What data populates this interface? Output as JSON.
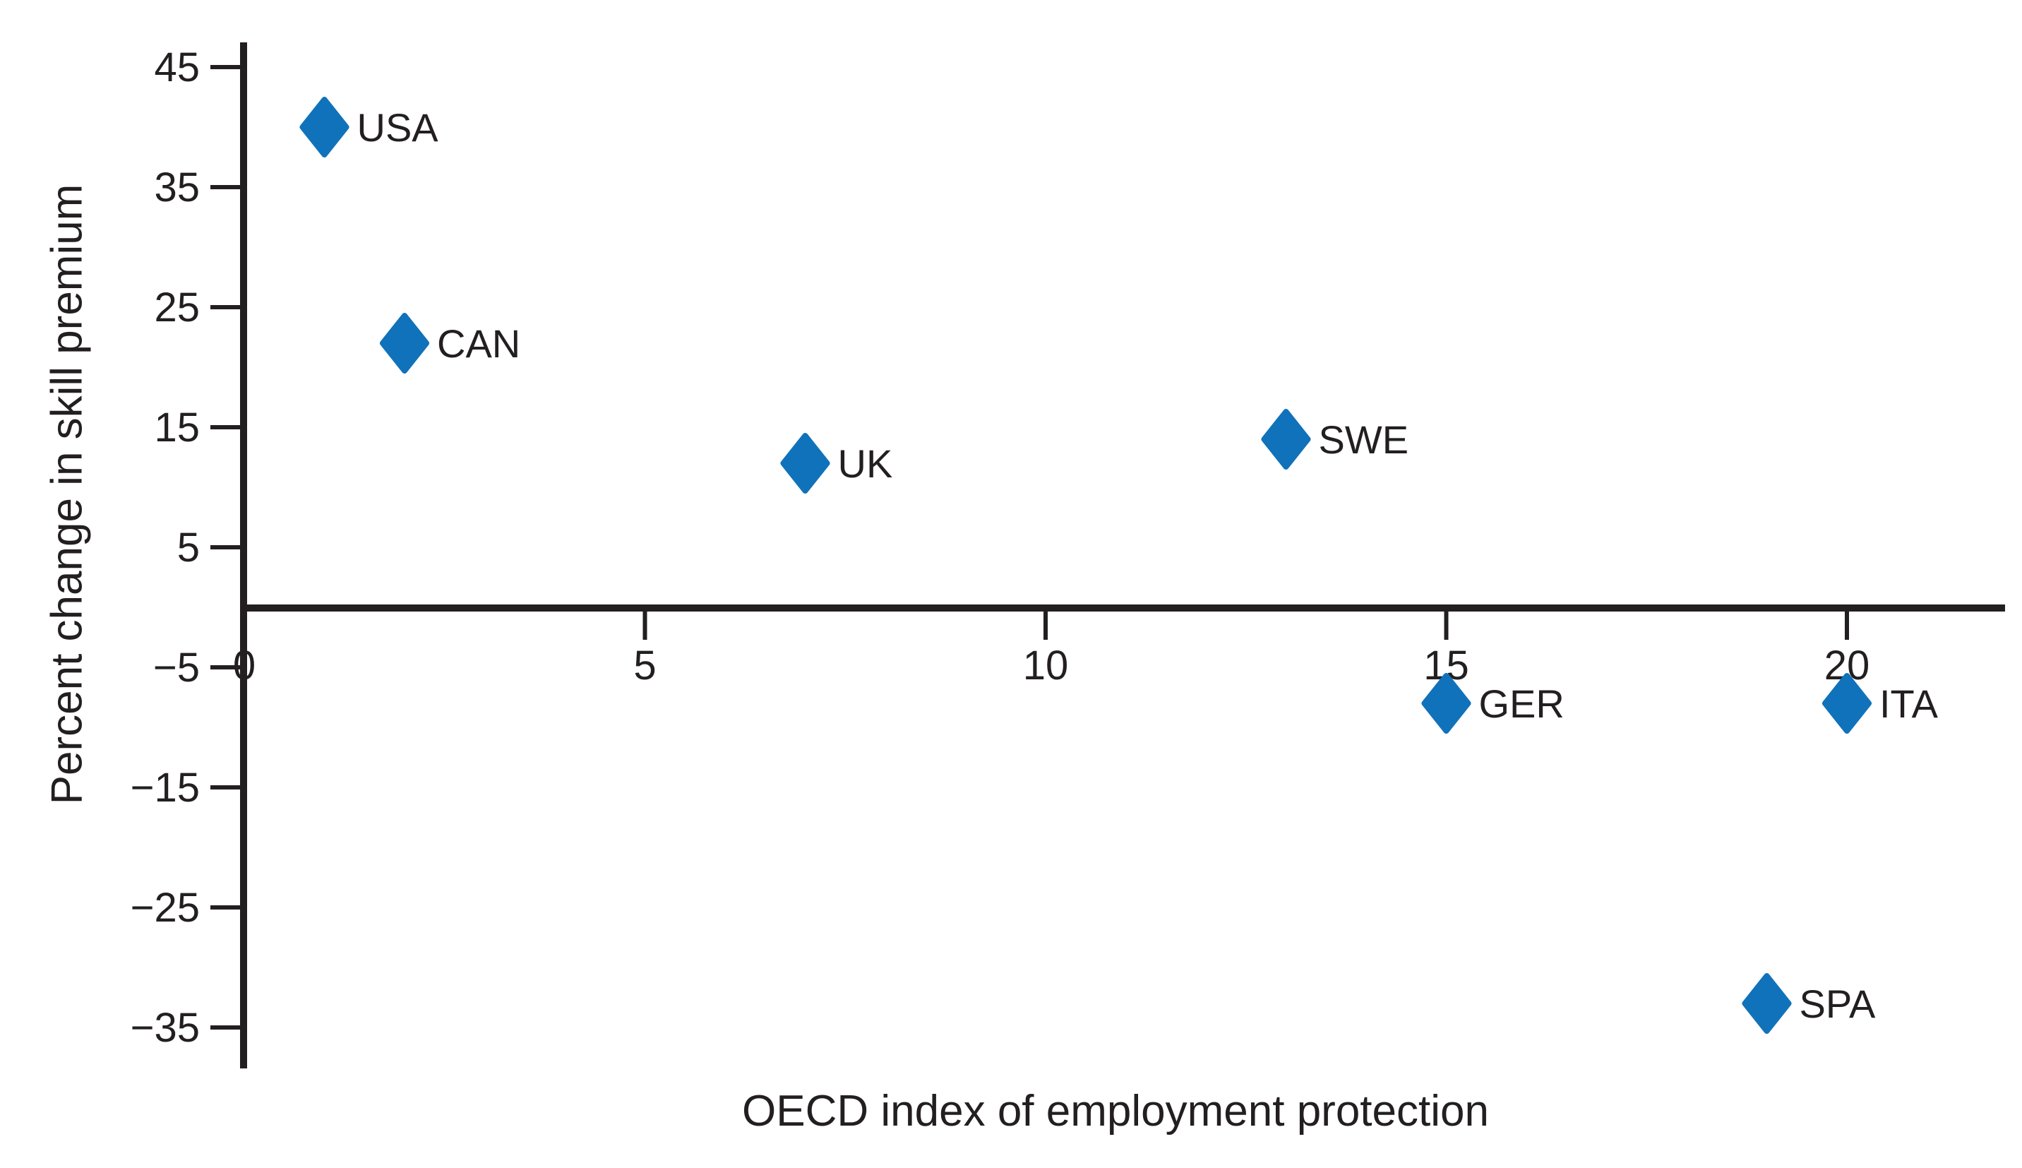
{
  "chart_data": {
    "type": "scatter",
    "title": "",
    "xlabel": "OECD index of employment protection",
    "ylabel": "Percent change in skill premium",
    "xlim": [
      0,
      22
    ],
    "ylim": [
      -37,
      47
    ],
    "x_ticks": [
      0,
      5,
      10,
      15,
      20
    ],
    "y_ticks": [
      45,
      35,
      25,
      15,
      5,
      -5,
      -15,
      -25,
      -35
    ],
    "grid": false,
    "legend": "none",
    "marker": "diamond",
    "colors": {
      "marker": "#1072BA",
      "axis": "#231F20",
      "text": "#231F20",
      "background": "#FFFFFF"
    },
    "points": [
      {
        "label": "USA",
        "x": 1,
        "y": 40
      },
      {
        "label": "CAN",
        "x": 2,
        "y": 22
      },
      {
        "label": "UK",
        "x": 7,
        "y": 12
      },
      {
        "label": "SWE",
        "x": 13,
        "y": 14
      },
      {
        "label": "GER",
        "x": 15,
        "y": -8
      },
      {
        "label": "ITA",
        "x": 20,
        "y": -8
      },
      {
        "label": "SPA",
        "x": 19,
        "y": -33
      }
    ]
  }
}
